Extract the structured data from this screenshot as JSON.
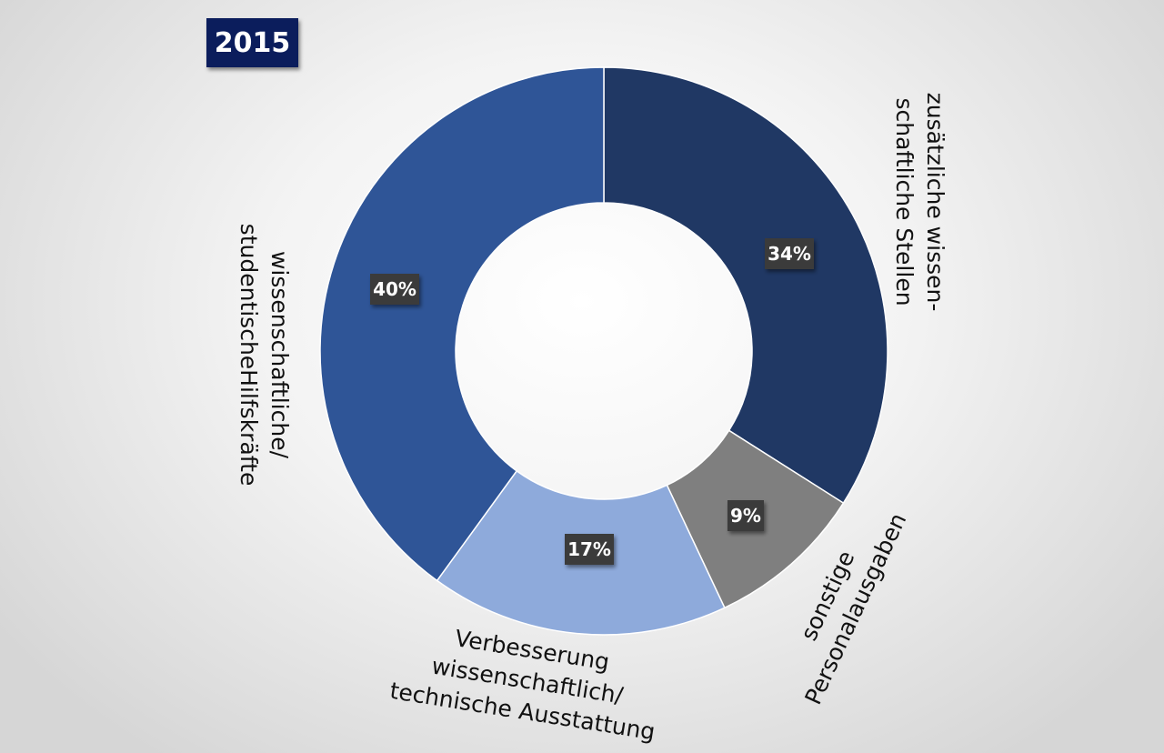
{
  "year_badge": "2015",
  "chart_data": {
    "type": "pie",
    "variant": "donut",
    "title": "2015",
    "start_angle": "12 o'clock, clockwise",
    "categories": [
      "zusätzliche wissen-schaftliche Stellen",
      "sonstige Personalausgaben",
      "Verbesserung wissenschaftlich/ technische Ausstattung",
      "wissenschaftliche/ studentischeHilfskräfte"
    ],
    "values": [
      34,
      9,
      17,
      40
    ],
    "data_labels": [
      "34%",
      "9%",
      "17%",
      "40%"
    ],
    "label_lines": [
      [
        "zusätzliche wissen-",
        "schaftliche Stellen"
      ],
      [
        "sonstige",
        "Personalausgaben"
      ],
      [
        "Verbesserung",
        "wissenschaftlich/",
        "technische Ausstattung"
      ],
      [
        "wissenschaftliche/",
        "studentischeHilfskräfte"
      ]
    ],
    "colors": [
      "#203864",
      "#7f7f7f",
      "#8eaadb",
      "#2f5597"
    ],
    "value_box_color": "#3a3a3a",
    "legend": "none"
  }
}
